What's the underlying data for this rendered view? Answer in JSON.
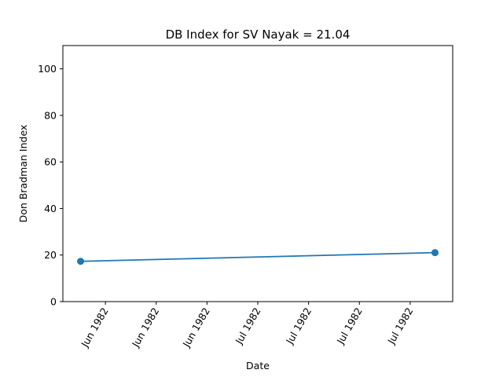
{
  "chart_data": {
    "type": "line",
    "title": "DB Index for SV Nayak = 21.04",
    "xlabel": "Date",
    "ylabel": "Don Bradman Index",
    "ylim": [
      0,
      110
    ],
    "yticks": [
      0,
      20,
      40,
      60,
      80,
      100
    ],
    "x_tick_labels": [
      "Jun 1982",
      "Jun 1982",
      "Jun 1982",
      "Jul 1982",
      "Jul 1982",
      "Jul 1982",
      "Jul 1982"
    ],
    "series": [
      {
        "color": "#1f77b4",
        "marker": "circle",
        "x": [
          "1982-06-03",
          "1982-07-10"
        ],
        "y": [
          17.3,
          21.04
        ]
      }
    ],
    "grid": false,
    "legend": "none"
  }
}
